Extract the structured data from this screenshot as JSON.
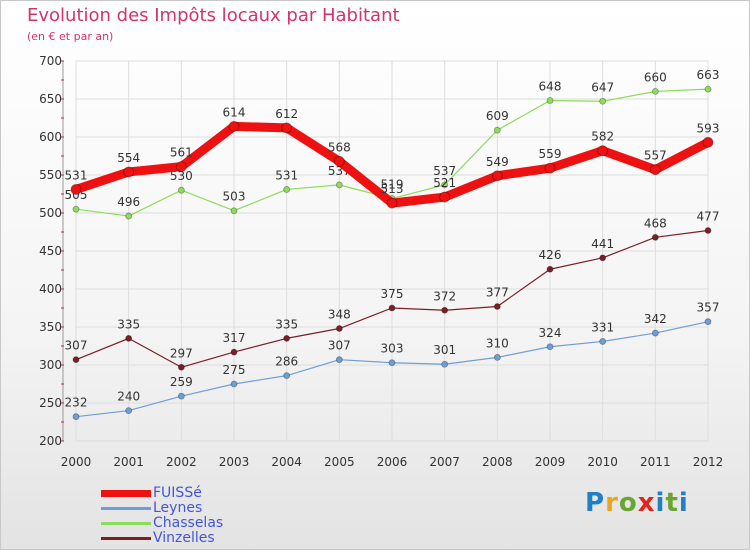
{
  "chart_data": {
    "type": "line",
    "title": "Evolution des Impôts locaux par Habitant",
    "subtitle": "(en € et par an)",
    "x": [
      "2000",
      "2001",
      "2002",
      "2003",
      "2004",
      "2005",
      "2006",
      "2007",
      "2008",
      "2009",
      "2010",
      "2011",
      "2012"
    ],
    "ylim": [
      200,
      700
    ],
    "yticks": [
      200,
      250,
      300,
      350,
      400,
      450,
      500,
      550,
      600,
      650,
      700
    ],
    "grid": true,
    "legend_placement": "bottom-left",
    "series": [
      {
        "name": "Vinzelles",
        "color": "#7a1f26",
        "values": [
          307,
          335,
          297,
          317,
          335,
          348,
          375,
          372,
          377,
          426,
          441,
          468,
          477
        ]
      },
      {
        "name": "Leynes",
        "color": "#6d9fd6",
        "values": [
          232,
          240,
          259,
          275,
          286,
          307,
          303,
          301,
          310,
          324,
          331,
          342,
          357
        ]
      },
      {
        "name": "Chasselas",
        "color": "#8edc5b",
        "values": [
          505,
          496,
          530,
          503,
          531,
          537,
          519,
          537,
          609,
          648,
          647,
          660,
          663
        ]
      },
      {
        "name": "FUISSé",
        "color": "#ee1111",
        "values": [
          531,
          554,
          561,
          614,
          612,
          568,
          513,
          521,
          549,
          559,
          582,
          557,
          593
        ]
      }
    ]
  },
  "legend": {
    "fuisse": "FUISSé",
    "leynes": "Leynes",
    "chasselas": "Chasselas",
    "vinzelles": "Vinzelles"
  },
  "logo_text": "Proxiti"
}
